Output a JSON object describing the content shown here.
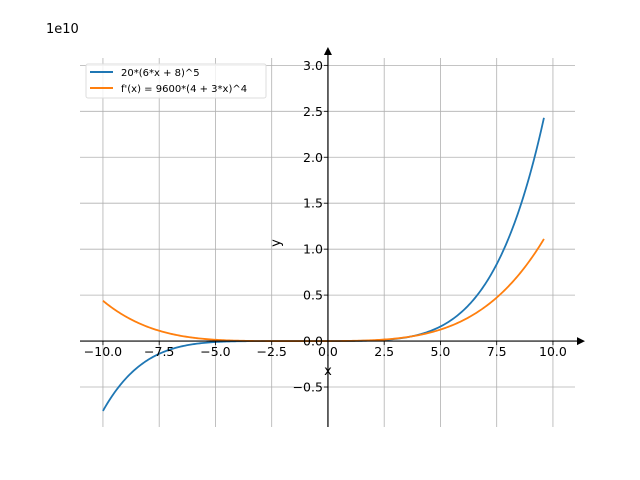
{
  "chart_data": {
    "type": "line",
    "title": "",
    "xlabel": "x",
    "ylabel": "y",
    "y_offset_label": "1e10",
    "xlim": [
      -11.02,
      10.98
    ],
    "ylim": [
      -0.935,
      3.08
    ],
    "y_scale_factor": 10000000000.0,
    "grid": true,
    "legend_placement": "top-left",
    "x_ticks": [
      -10.0,
      -7.5,
      -5.0,
      -2.5,
      0.0,
      2.5,
      5.0,
      7.5,
      10.0
    ],
    "x_tick_labels": [
      "−10.0",
      "−7.5",
      "−5.0",
      "−2.5",
      "0.0",
      "2.5",
      "5.0",
      "7.5",
      "10.0"
    ],
    "y_ticks": [
      -0.5,
      0.0,
      0.5,
      1.0,
      1.5,
      2.0,
      2.5,
      3.0
    ],
    "y_tick_labels": [
      "−0.5",
      "0.0",
      "0.5",
      "1.0",
      "1.5",
      "2.0",
      "2.5",
      "3.0"
    ],
    "x_range": [
      -10,
      9.6
    ],
    "series": [
      {
        "name": "20*(6*x + 8)^5",
        "color": "#1f77b4",
        "expression": "20*(6*x + 8)^5"
      },
      {
        "name": "f'(x) = 9600*(4 + 3*x)^4",
        "color": "#ff7f0e",
        "expression": "9600*(4 + 3*x)^4"
      }
    ]
  }
}
